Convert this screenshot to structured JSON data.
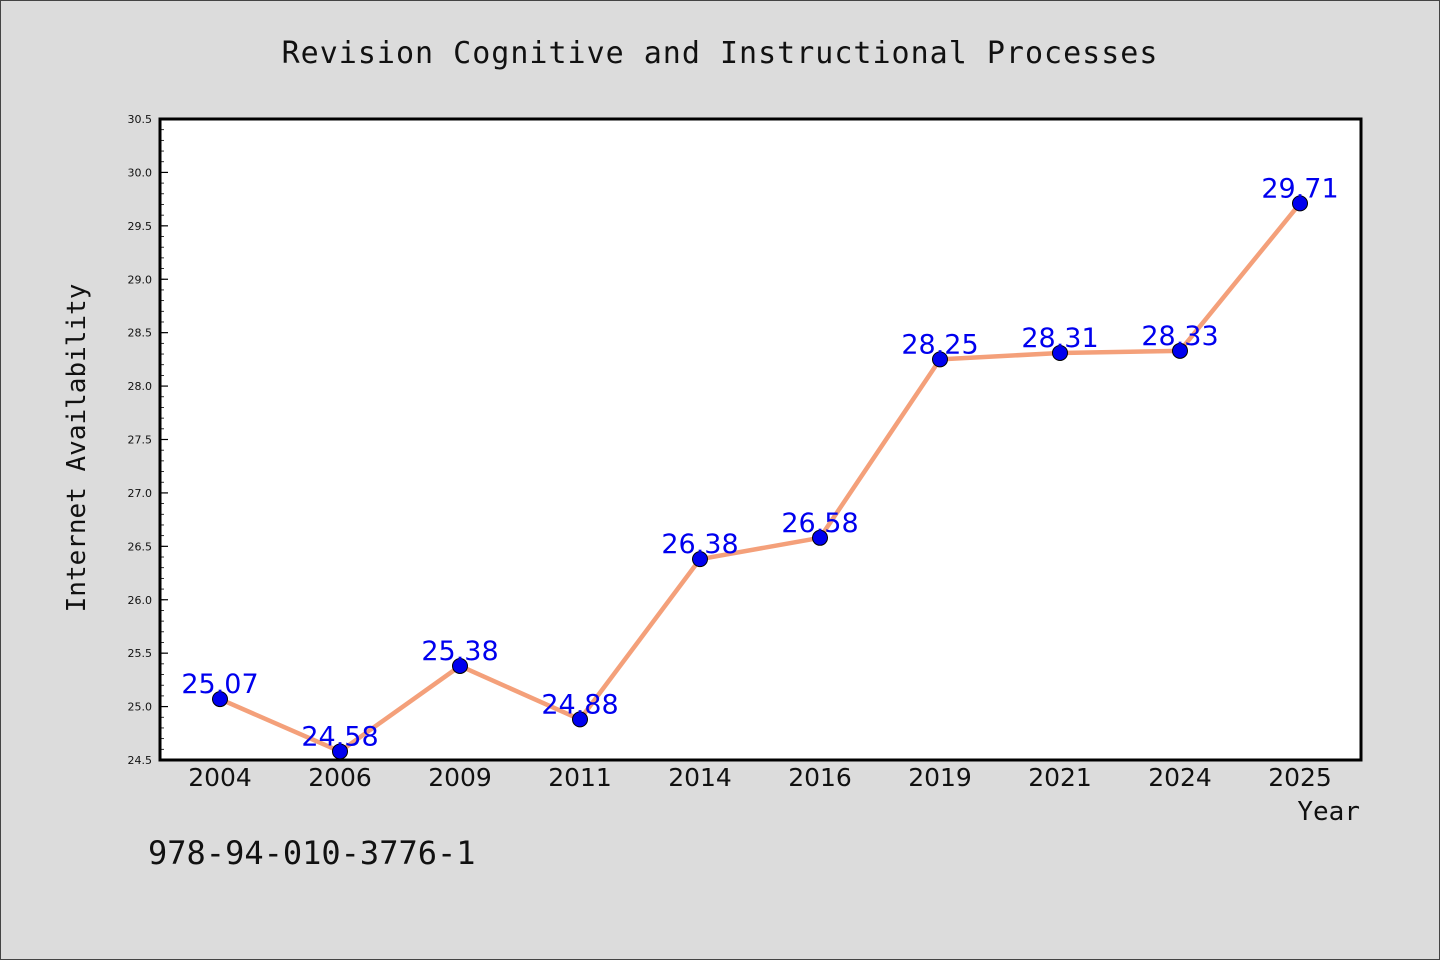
{
  "chart_data": {
    "type": "line",
    "title": "Revision Cognitive and Instructional Processes",
    "xlabel": "Year",
    "ylabel": "Internet Availability",
    "categories": [
      "2004",
      "2006",
      "2009",
      "2011",
      "2014",
      "2016",
      "2019",
      "2021",
      "2024",
      "2025"
    ],
    "series": [
      {
        "values": [
          25.07,
          24.58,
          25.38,
          24.88,
          26.38,
          26.58,
          28.25,
          28.31,
          28.33,
          29.71
        ],
        "data_labels": [
          "25.07",
          "24.58",
          "25.38",
          "24.88",
          "26.38",
          "26.58",
          "28.25",
          "28.31",
          "28.33",
          "29.71"
        ],
        "line_color": "#f4a07a",
        "marker_color": "#0000ee",
        "label_color": "#0000ee"
      }
    ],
    "ylim": [
      24.5,
      30.5
    ],
    "yticks": [
      "24.5",
      "25.0",
      "25.5",
      "26.0",
      "26.5",
      "27.0",
      "27.5",
      "28.0",
      "28.5",
      "29.0",
      "29.5",
      "30.0",
      "30.5"
    ],
    "grid": false,
    "background": "#dcdcdc",
    "plot_background": "#ffffff"
  },
  "footer": {
    "isbn": "978-94-010-3776-1"
  }
}
